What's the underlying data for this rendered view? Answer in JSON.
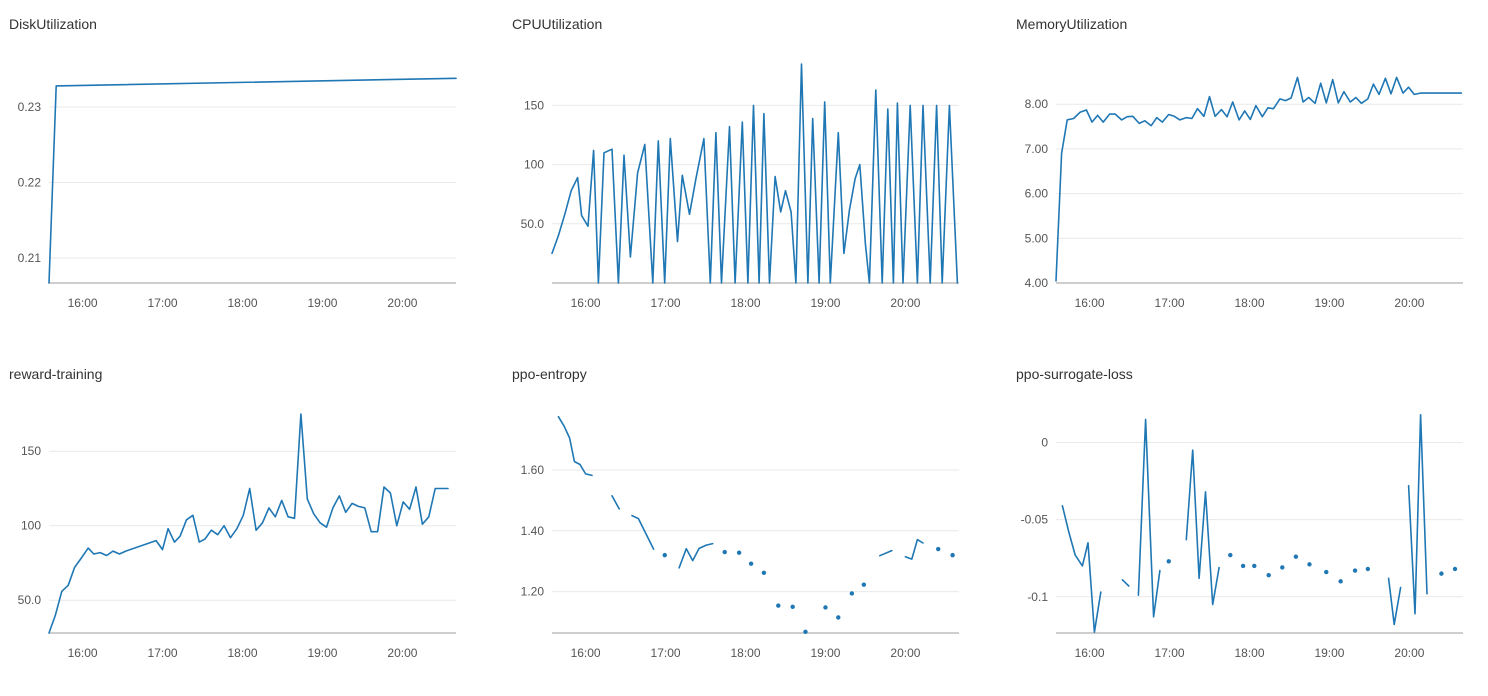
{
  "chart_data": [
    {
      "id": "disk",
      "type": "line",
      "title": "DiskUtilization",
      "color": "#1f77b4",
      "x_ticks": [
        "16:00",
        "17:00",
        "18:00",
        "19:00",
        "20:00"
      ],
      "x_tick_hours": [
        16,
        17,
        18,
        19,
        20
      ],
      "xlim": [
        15.58,
        20.67
      ],
      "ylim": [
        0.2067,
        0.2357
      ],
      "y_ticks": [
        0.21,
        0.22,
        0.23
      ],
      "y_tick_labels": [
        "0.21",
        "0.22",
        "0.23"
      ],
      "x": [
        15.58,
        15.67,
        20.67
      ],
      "y": [
        0.2067,
        0.2328,
        0.2338
      ]
    },
    {
      "id": "cpu",
      "type": "line",
      "title": "CPUUtilization",
      "color": "#1f77b4",
      "x_ticks": [
        "16:00",
        "17:00",
        "18:00",
        "19:00",
        "20:00"
      ],
      "x_tick_hours": [
        16,
        17,
        18,
        19,
        20
      ],
      "xlim": [
        15.58,
        20.67
      ],
      "ylim": [
        0,
        185
      ],
      "y_ticks": [
        50,
        100,
        150
      ],
      "y_tick_labels": [
        "50.0",
        "100",
        "150"
      ],
      "x": [
        15.58,
        15.66,
        15.74,
        15.82,
        15.9,
        15.95,
        16.03,
        16.1,
        16.16,
        16.23,
        16.33,
        16.41,
        16.48,
        16.56,
        16.65,
        16.74,
        16.84,
        16.91,
        16.99,
        17.06,
        17.15,
        17.21,
        17.3,
        17.38,
        17.48,
        17.56,
        17.63,
        17.7,
        17.8,
        17.87,
        17.96,
        18.03,
        18.1,
        18.17,
        18.23,
        18.3,
        18.37,
        18.44,
        18.5,
        18.57,
        18.63,
        18.7,
        18.78,
        18.84,
        18.92,
        18.99,
        19.06,
        19.16,
        19.23,
        19.3,
        19.37,
        19.43,
        19.5,
        19.55,
        19.63,
        19.71,
        19.78,
        19.85,
        19.9,
        19.97,
        20.06,
        20.15,
        20.22,
        20.31,
        20.39,
        20.46,
        20.55,
        20.65
      ],
      "y": [
        25,
        40,
        58,
        78,
        89,
        57,
        48,
        112,
        0,
        110,
        113,
        0,
        108,
        22,
        93,
        117,
        0,
        120,
        0,
        122,
        35,
        91,
        58,
        88,
        122,
        0,
        127,
        0,
        132,
        0,
        136,
        0,
        150,
        0,
        143,
        0,
        90,
        60,
        78,
        60,
        0,
        185,
        0,
        139,
        0,
        153,
        0,
        127,
        25,
        62,
        88,
        100,
        33,
        0,
        163,
        0,
        147,
        0,
        152,
        0,
        150,
        0,
        150,
        0,
        150,
        0,
        150,
        0
      ]
    },
    {
      "id": "memory",
      "type": "line",
      "title": "MemoryUtilization",
      "color": "#1f77b4",
      "x_ticks": [
        "16:00",
        "17:00",
        "18:00",
        "19:00",
        "20:00"
      ],
      "x_tick_hours": [
        16,
        17,
        18,
        19,
        20
      ],
      "xlim": [
        15.58,
        20.67
      ],
      "ylim": [
        4.0,
        8.9
      ],
      "y_ticks": [
        4,
        5,
        6,
        7,
        8
      ],
      "y_tick_labels": [
        "4.00",
        "5.00",
        "6.00",
        "7.00",
        "8.00"
      ],
      "x": [
        15.58,
        15.65,
        15.72,
        15.8,
        15.88,
        15.96,
        16.03,
        16.1,
        16.17,
        16.25,
        16.32,
        16.4,
        16.47,
        16.54,
        16.62,
        16.69,
        16.77,
        16.84,
        16.91,
        16.99,
        17.06,
        17.13,
        17.21,
        17.28,
        17.35,
        17.43,
        17.5,
        17.57,
        17.65,
        17.72,
        17.79,
        17.87,
        17.94,
        18.01,
        18.08,
        18.16,
        18.23,
        18.3,
        18.38,
        18.45,
        18.52,
        18.6,
        18.67,
        18.74,
        18.82,
        18.89,
        18.96,
        19.04,
        19.11,
        19.18,
        19.26,
        19.33,
        19.4,
        19.48,
        19.55,
        19.62,
        19.7,
        19.77,
        19.84,
        19.92,
        19.99,
        20.06,
        20.14,
        20.21,
        20.28,
        20.36,
        20.43,
        20.5,
        20.58,
        20.65
      ],
      "y": [
        4.05,
        6.9,
        7.65,
        7.68,
        7.82,
        7.87,
        7.6,
        7.75,
        7.6,
        7.78,
        7.78,
        7.65,
        7.72,
        7.73,
        7.57,
        7.63,
        7.52,
        7.7,
        7.6,
        7.77,
        7.73,
        7.65,
        7.7,
        7.68,
        7.9,
        7.73,
        8.17,
        7.73,
        7.88,
        7.72,
        8.05,
        7.65,
        7.85,
        7.66,
        7.97,
        7.72,
        7.92,
        7.9,
        8.12,
        8.08,
        8.14,
        8.6,
        8.05,
        8.15,
        8.02,
        8.47,
        8.03,
        8.55,
        8.03,
        8.28,
        8.05,
        8.15,
        8.02,
        8.12,
        8.45,
        8.22,
        8.58,
        8.23,
        8.6,
        8.25,
        8.38,
        8.22,
        8.25,
        8.25,
        8.25,
        8.25,
        8.25,
        8.25,
        8.25,
        8.25
      ]
    },
    {
      "id": "reward",
      "type": "line",
      "title": "reward-training",
      "color": "#1f77b4",
      "x_ticks": [
        "16:00",
        "17:00",
        "18:00",
        "19:00",
        "20:00"
      ],
      "x_tick_hours": [
        16,
        17,
        18,
        19,
        20
      ],
      "xlim": [
        15.58,
        20.67
      ],
      "ylim": [
        28,
        175
      ],
      "y_ticks": [
        50,
        100,
        150
      ],
      "y_tick_labels": [
        "50.0",
        "100",
        "150"
      ],
      "x": [
        15.58,
        15.66,
        15.74,
        15.82,
        15.9,
        15.98,
        16.07,
        16.14,
        16.22,
        16.3,
        16.38,
        16.46,
        16.54,
        16.92,
        17.0,
        17.07,
        17.15,
        17.22,
        17.3,
        17.38,
        17.46,
        17.53,
        17.61,
        17.69,
        17.77,
        17.85,
        17.93,
        18.01,
        18.09,
        18.17,
        18.25,
        18.33,
        18.41,
        18.49,
        18.57,
        18.65,
        18.73,
        18.81,
        18.89,
        18.97,
        19.05,
        19.13,
        19.21,
        19.29,
        19.37,
        19.45,
        19.53,
        19.61,
        19.69,
        19.77,
        19.85,
        19.93,
        20.01,
        20.09,
        20.17,
        20.25,
        20.33,
        20.41,
        20.49,
        20.57
      ],
      "y": [
        28,
        40,
        56,
        60,
        72,
        78,
        85,
        81,
        82,
        80,
        83,
        81,
        83,
        90,
        84,
        98,
        89,
        93,
        104,
        107,
        89,
        91,
        97,
        94,
        100,
        92,
        98,
        107,
        125,
        97,
        102,
        112,
        106,
        117,
        106,
        105,
        175,
        118,
        108,
        102,
        99,
        112,
        120,
        109,
        115,
        113,
        112,
        96,
        96,
        126,
        122,
        100,
        116,
        111,
        126,
        101,
        106,
        125,
        125,
        125
      ]
    },
    {
      "id": "entropy",
      "type": "line",
      "title": "ppo-entropy",
      "color": "#1f77b4",
      "x_ticks": [
        "16:00",
        "17:00",
        "18:00",
        "19:00",
        "20:00"
      ],
      "x_tick_hours": [
        16,
        17,
        18,
        19,
        20
      ],
      "xlim": [
        15.58,
        20.67
      ],
      "ylim": [
        1.064,
        1.784
      ],
      "y_ticks": [
        1.2,
        1.4,
        1.6
      ],
      "y_tick_labels": [
        "1.20",
        "1.40",
        "1.60"
      ],
      "segments": [
        {
          "x": [
            15.66,
            15.73,
            15.8,
            15.86,
            15.93,
            16.0,
            16.08
          ],
          "y": [
            1.775,
            1.745,
            1.705,
            1.628,
            1.618,
            1.587,
            1.582
          ]
        },
        {
          "x": [
            16.33,
            16.42
          ],
          "y": [
            1.515,
            1.472
          ]
        },
        {
          "x": [
            16.58,
            16.66,
            16.85
          ],
          "y": [
            1.45,
            1.44,
            1.34
          ]
        },
        {
          "x": [
            17.17,
            17.26,
            17.34,
            17.42,
            17.51,
            17.59
          ],
          "y": [
            1.278,
            1.341,
            1.302,
            1.342,
            1.353,
            1.358
          ]
        },
        {
          "x": [
            19.68,
            19.83
          ],
          "y": [
            1.318,
            1.335
          ]
        },
        {
          "x": [
            20.0,
            20.08,
            20.15,
            20.22
          ],
          "y": [
            1.315,
            1.307,
            1.371,
            1.36
          ]
        }
      ],
      "points": {
        "x": [
          16.99,
          17.74,
          17.92,
          18.07,
          18.23,
          18.41,
          18.59,
          18.75,
          19.0,
          19.16,
          19.33,
          19.48,
          20.41,
          20.59
        ],
        "y": [
          1.32,
          1.33,
          1.328,
          1.292,
          1.262,
          1.154,
          1.15,
          1.068,
          1.148,
          1.115,
          1.194,
          1.223,
          1.34,
          1.32
        ]
      }
    },
    {
      "id": "surrogate",
      "type": "line",
      "title": "ppo-surrogate-loss",
      "color": "#1f77b4",
      "x_ticks": [
        "16:00",
        "17:00",
        "18:00",
        "19:00",
        "20:00"
      ],
      "x_tick_hours": [
        16,
        17,
        18,
        19,
        20
      ],
      "xlim": [
        15.58,
        20.67
      ],
      "ylim": [
        -0.1235,
        0.0185
      ],
      "y_ticks": [
        -0.1,
        -0.05,
        0
      ],
      "y_tick_labels": [
        "-0.1",
        "-0.05",
        "0"
      ],
      "segments": [
        {
          "x": [
            15.66,
            15.74,
            15.82,
            15.91,
            15.98,
            16.06,
            16.14
          ],
          "y": [
            -0.041,
            -0.058,
            -0.073,
            -0.08,
            -0.065,
            -0.123,
            -0.097
          ]
        },
        {
          "x": [
            16.41,
            16.49
          ],
          "y": [
            -0.089,
            -0.093
          ]
        },
        {
          "x": [
            16.61,
            16.7,
            16.8,
            16.88
          ],
          "y": [
            -0.099,
            0.015,
            -0.113,
            -0.083
          ]
        },
        {
          "x": [
            17.21,
            17.29,
            17.37,
            17.45,
            17.54,
            17.62
          ],
          "y": [
            -0.063,
            -0.005,
            -0.088,
            -0.032,
            -0.105,
            -0.081
          ]
        },
        {
          "x": [
            19.74,
            19.81,
            19.89
          ],
          "y": [
            -0.088,
            -0.118,
            -0.094
          ]
        },
        {
          "x": [
            19.99,
            20.07,
            20.14,
            20.22
          ],
          "y": [
            -0.028,
            -0.111,
            0.018,
            -0.098
          ]
        }
      ],
      "points": {
        "x": [
          16.99,
          17.76,
          17.92,
          18.06,
          18.24,
          18.41,
          18.58,
          18.75,
          18.96,
          19.14,
          19.32,
          19.48,
          20.4,
          20.57
        ],
        "y": [
          -0.077,
          -0.073,
          -0.08,
          -0.08,
          -0.086,
          -0.081,
          -0.074,
          -0.079,
          -0.084,
          -0.09,
          -0.083,
          -0.082,
          -0.085,
          -0.082
        ]
      }
    }
  ]
}
